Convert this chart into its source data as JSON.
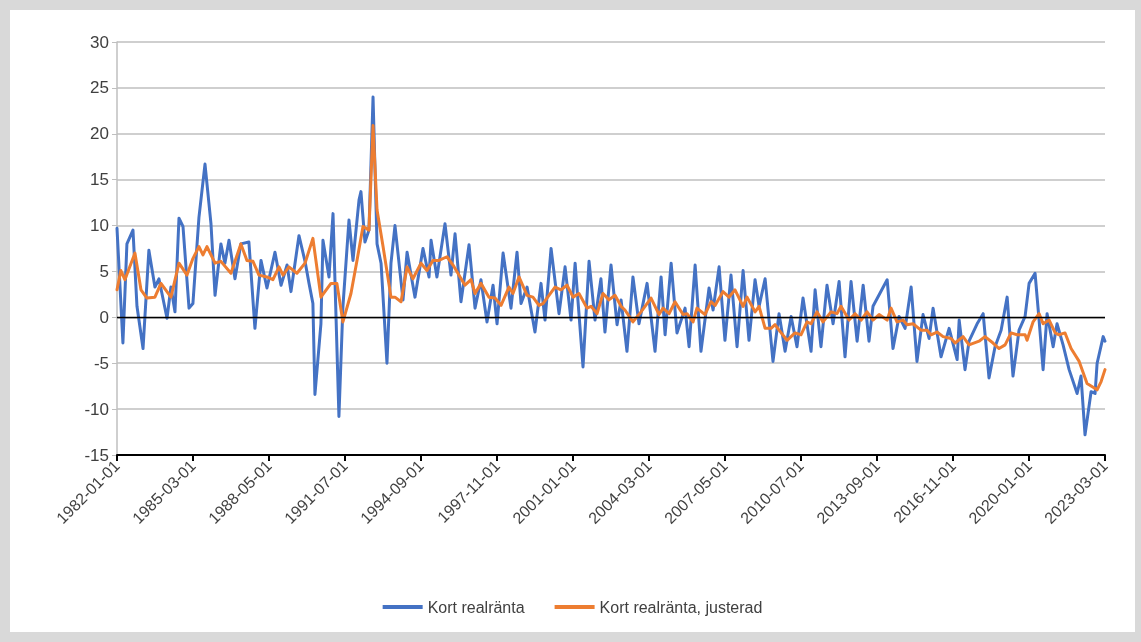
{
  "chart_data": {
    "type": "line",
    "xlim": [
      "1982-01-01",
      "2023-03-01"
    ],
    "xticks": [
      "1982-01-01",
      "1985-03-01",
      "1988-05-01",
      "1991-07-01",
      "1994-09-01",
      "1997-11-01",
      "2001-01-01",
      "2004-03-01",
      "2007-05-01",
      "2010-07-01",
      "2013-09-01",
      "2016-11-01",
      "2020-01-01",
      "2023-03-01"
    ],
    "ylim": [
      -15,
      30
    ],
    "yticks": [
      -15,
      -10,
      -5,
      0,
      5,
      10,
      15,
      20,
      25,
      30
    ],
    "grid": "y",
    "legend": "bottom",
    "marker": "none",
    "line_style": "solid",
    "ref_lines": [
      {
        "axis": "y",
        "value": 0,
        "color": "#000000"
      }
    ],
    "series": [
      {
        "name": "Kort realränta",
        "color": "#4472c4",
        "x": [
          "1982-01",
          "1982-04",
          "1982-06",
          "1982-09",
          "1982-11",
          "1983-02",
          "1983-05",
          "1983-08",
          "1983-10",
          "1984-02",
          "1984-04",
          "1984-06",
          "1984-08",
          "1984-10",
          "1985-01",
          "1985-03",
          "1985-06",
          "1985-09",
          "1985-12",
          "1986-02",
          "1986-05",
          "1986-07",
          "1986-09",
          "1986-12",
          "1987-03",
          "1987-07",
          "1987-10",
          "1988-01",
          "1988-04",
          "1988-08",
          "1988-11",
          "1989-02",
          "1989-04",
          "1989-08",
          "1989-11",
          "1990-01",
          "1990-03",
          "1990-04",
          "1990-07",
          "1990-08",
          "1990-11",
          "1991-01",
          "1991-04",
          "1991-06",
          "1991-09",
          "1991-11",
          "1992-02",
          "1992-03",
          "1992-05",
          "1992-07",
          "1992-09",
          "1992-11",
          "1993-01",
          "1993-04",
          "1993-06",
          "1993-08",
          "1993-12",
          "1994-02",
          "1994-06",
          "1994-10",
          "1995-01",
          "1995-02",
          "1995-05",
          "1995-09",
          "1995-12",
          "1996-02",
          "1996-05",
          "1996-09",
          "1996-12",
          "1997-03",
          "1997-06",
          "1997-09",
          "1997-11",
          "1998-02",
          "1998-06",
          "1998-09",
          "1998-11",
          "1999-02",
          "1999-06",
          "1999-09",
          "1999-11",
          "2000-02",
          "2000-06",
          "2000-09",
          "2000-12",
          "2001-02",
          "2001-06",
          "2001-09",
          "2001-12",
          "2002-03",
          "2002-05",
          "2002-08",
          "2002-11",
          "2003-01",
          "2003-04",
          "2003-07",
          "2003-10",
          "2004-02",
          "2004-06",
          "2004-09",
          "2004-11",
          "2005-02",
          "2005-05",
          "2005-09",
          "2005-11",
          "2006-02",
          "2006-05",
          "2006-09",
          "2006-11",
          "2007-02",
          "2007-05",
          "2007-08",
          "2007-11",
          "2008-02",
          "2008-05",
          "2008-08",
          "2008-10",
          "2009-01",
          "2009-05",
          "2009-08",
          "2009-11",
          "2010-02",
          "2010-05",
          "2010-08",
          "2010-12",
          "2011-02",
          "2011-05",
          "2011-08",
          "2011-11",
          "2012-02",
          "2012-05",
          "2012-08",
          "2012-11",
          "2013-02",
          "2013-05",
          "2013-07",
          "2014-02",
          "2014-05",
          "2014-08",
          "2014-11",
          "2015-02",
          "2015-05",
          "2015-08",
          "2015-11",
          "2016-01",
          "2016-05",
          "2016-09",
          "2017-01",
          "2017-02",
          "2017-05",
          "2017-07",
          "2017-11",
          "2018-02",
          "2018-05",
          "2018-08",
          "2018-11",
          "2019-02",
          "2019-05",
          "2019-08",
          "2019-11",
          "2020-01",
          "2020-04",
          "2020-06",
          "2020-08",
          "2020-10",
          "2021-01",
          "2021-03",
          "2021-06",
          "2021-09",
          "2022-01",
          "2022-03",
          "2022-05",
          "2022-08",
          "2022-10",
          "2022-11",
          "2023-02",
          "2023-03"
        ],
        "values": [
          9.7,
          -2.8,
          8.0,
          9.5,
          1.2,
          -3.4,
          7.3,
          3.3,
          4.2,
          -0.1,
          3.3,
          0.6,
          10.8,
          9.9,
          1.0,
          1.5,
          10.9,
          16.7,
          10.2,
          2.4,
          8.0,
          5.9,
          8.4,
          4.2,
          8.0,
          8.2,
          -1.2,
          6.2,
          3.2,
          7.1,
          3.5,
          5.7,
          2.8,
          8.9,
          6.1,
          3.7,
          1.5,
          -8.4,
          -0.7,
          8.4,
          4.4,
          11.3,
          -10.8,
          1.2,
          10.6,
          6.2,
          12.8,
          13.7,
          8.2,
          9.5,
          24.0,
          8.0,
          5.9,
          -5.0,
          5.9,
          10.0,
          1.9,
          7.1,
          2.2,
          7.5,
          4.4,
          8.4,
          4.4,
          10.2,
          4.6,
          9.1,
          1.7,
          7.9,
          1.0,
          4.1,
          -0.5,
          3.5,
          -0.7,
          7.0,
          1.0,
          7.1,
          1.5,
          3.3,
          -1.6,
          3.7,
          -0.3,
          7.5,
          0.4,
          5.5,
          -0.3,
          5.9,
          -5.4,
          6.1,
          -0.3,
          4.2,
          -1.6,
          5.7,
          -0.8,
          1.9,
          -3.7,
          4.4,
          -0.7,
          3.7,
          -3.7,
          4.4,
          -1.9,
          5.9,
          -1.7,
          1.0,
          -3.2,
          5.7,
          -3.7,
          3.2,
          0.8,
          5.5,
          -2.5,
          4.6,
          -3.2,
          5.1,
          -2.5,
          4.1,
          1.2,
          4.2,
          -4.8,
          0.4,
          -3.7,
          0.1,
          -3.2,
          2.1,
          -3.7,
          3.0,
          -3.2,
          3.5,
          -0.7,
          3.9,
          -4.3,
          3.9,
          -2.6,
          3.5,
          -2.6,
          1.2,
          4.1,
          -3.4,
          0.1,
          -1.2,
          3.3,
          -4.8,
          0.3,
          -2.3,
          1.0,
          -4.3,
          -1.2,
          -4.6,
          -0.3,
          -5.7,
          -2.6,
          -0.7,
          0.4,
          -6.6,
          -3.2,
          -1.4,
          2.2,
          -6.4,
          -1.4,
          0.1,
          3.7,
          4.8,
          -0.3,
          -5.7,
          0.4,
          -3.2,
          -0.7,
          -3.0,
          -5.7,
          -8.3,
          -6.4,
          -12.8,
          -8.1,
          -8.3,
          -5.0,
          -2.1,
          -2.6
        ]
      },
      {
        "name": "Kort realränta, justerad",
        "color": "#ed7d31",
        "x": [
          "1982-01",
          "1982-03",
          "1982-05",
          "1982-10",
          "1983-01",
          "1983-04",
          "1983-08",
          "1983-11",
          "1984-04",
          "1984-08",
          "1984-12",
          "1985-03",
          "1985-06",
          "1985-08",
          "1985-10",
          "1986-02",
          "1986-05",
          "1986-10",
          "1987-03",
          "1987-06",
          "1987-09",
          "1987-12",
          "1988-04",
          "1988-07",
          "1988-10",
          "1988-12",
          "1989-03",
          "1989-07",
          "1989-11",
          "1990-03",
          "1990-07",
          "1990-12",
          "1991-03",
          "1991-06",
          "1991-10",
          "1992-01",
          "1992-04",
          "1992-07",
          "1992-09",
          "1992-11",
          "1993-02",
          "1993-06",
          "1993-08",
          "1993-11",
          "1994-02",
          "1994-05",
          "1994-09",
          "1994-12",
          "1995-03",
          "1995-06",
          "1995-10",
          "1996-01",
          "1996-07",
          "1996-10",
          "1996-12",
          "1997-03",
          "1997-07",
          "1997-10",
          "1998-01",
          "1998-05",
          "1998-07",
          "1998-10",
          "1999-02",
          "1999-05",
          "1999-08",
          "1999-10",
          "2000-04",
          "2000-07",
          "2000-10",
          "2001-01",
          "2001-04",
          "2001-08",
          "2001-10",
          "2002-01",
          "2002-04",
          "2002-07",
          "2002-10",
          "2003-01",
          "2003-03",
          "2003-07",
          "2003-11",
          "2004-04",
          "2004-08",
          "2004-10",
          "2005-01",
          "2005-04",
          "2005-08",
          "2005-10",
          "2006-01",
          "2006-03",
          "2006-07",
          "2006-10",
          "2006-12",
          "2007-04",
          "2007-07",
          "2007-10",
          "2008-02",
          "2008-04",
          "2008-08",
          "2008-10",
          "2009-01",
          "2009-04",
          "2009-06",
          "2009-08",
          "2009-12",
          "2010-04",
          "2010-07",
          "2010-10",
          "2010-12",
          "2011-03",
          "2011-06",
          "2011-10",
          "2012-01",
          "2012-03",
          "2012-07",
          "2012-10",
          "2013-01",
          "2013-04",
          "2013-07",
          "2013-10",
          "2014-02",
          "2014-04",
          "2014-07",
          "2014-10",
          "2014-12",
          "2015-03",
          "2015-07",
          "2015-10",
          "2015-12",
          "2016-03",
          "2016-06",
          "2016-10",
          "2016-12",
          "2017-04",
          "2017-07",
          "2017-12",
          "2018-03",
          "2018-07",
          "2018-10",
          "2019-01",
          "2019-04",
          "2019-07",
          "2019-11",
          "2019-12",
          "2020-03",
          "2020-06",
          "2020-08",
          "2020-11",
          "2021-02",
          "2021-04",
          "2021-07",
          "2021-10",
          "2022-02",
          "2022-06",
          "2022-11",
          "2023-01",
          "2023-03"
        ],
        "values": [
          3.0,
          5.1,
          4.1,
          7.0,
          3.0,
          2.1,
          2.2,
          3.7,
          2.2,
          5.9,
          4.6,
          6.4,
          7.7,
          6.8,
          7.7,
          5.9,
          6.1,
          4.8,
          8.0,
          6.2,
          6.1,
          4.6,
          4.4,
          4.1,
          5.5,
          4.6,
          5.5,
          4.8,
          5.9,
          8.6,
          2.2,
          3.7,
          3.7,
          -0.5,
          2.6,
          6.2,
          9.9,
          9.5,
          20.9,
          11.7,
          7.7,
          2.2,
          2.2,
          1.7,
          5.5,
          4.2,
          5.9,
          5.1,
          6.2,
          6.2,
          6.6,
          5.7,
          3.5,
          4.1,
          2.6,
          3.7,
          2.2,
          2.1,
          1.3,
          3.3,
          2.6,
          4.4,
          2.4,
          2.2,
          1.3,
          1.5,
          3.3,
          3.0,
          3.5,
          2.2,
          2.6,
          1.0,
          1.2,
          0.4,
          2.6,
          1.9,
          2.4,
          1.2,
          0.8,
          -0.5,
          0.6,
          2.1,
          0.3,
          1.0,
          0.4,
          1.7,
          0.3,
          0.4,
          -0.5,
          1.0,
          0.3,
          1.7,
          1.3,
          2.8,
          2.2,
          3.0,
          1.2,
          2.2,
          0.6,
          1.2,
          -1.2,
          -1.2,
          -0.8,
          -1.4,
          -2.5,
          -1.7,
          -1.9,
          -0.5,
          -0.7,
          0.6,
          -0.5,
          0.6,
          0.4,
          1.2,
          -0.3,
          0.4,
          -0.3,
          0.6,
          -0.3,
          0.3,
          -0.3,
          1.0,
          -0.5,
          -0.3,
          -0.8,
          -0.7,
          -1.4,
          -1.4,
          -1.9,
          -1.6,
          -2.1,
          -2.3,
          -2.8,
          -2.1,
          -3.0,
          -2.6,
          -2.1,
          -2.8,
          -3.4,
          -3.0,
          -1.7,
          -1.9,
          -1.9,
          -2.5,
          -0.5,
          0.4,
          -0.7,
          -0.3,
          -1.7,
          -1.9,
          -1.7,
          -3.4,
          -4.8,
          -7.2,
          -7.9,
          -7.0,
          -5.7
        ]
      }
    ]
  }
}
